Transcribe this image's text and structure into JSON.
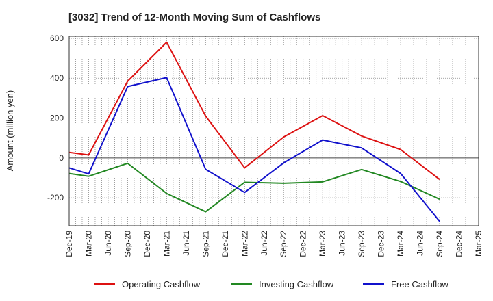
{
  "chart_data": {
    "type": "line",
    "title": "[3032]  Trend of 12-Month Moving Sum of Cashflows",
    "xlabel": "",
    "ylabel": "Amount (million yen)",
    "ylim": [
      -340,
      610
    ],
    "yticks": [
      -200,
      0,
      200,
      400,
      600
    ],
    "categories": [
      "Dec-19",
      "Mar-20",
      "Jun-20",
      "Sep-20",
      "Dec-20",
      "Mar-21",
      "Jun-21",
      "Sep-21",
      "Dec-21",
      "Mar-22",
      "Jun-22",
      "Sep-22",
      "Dec-22",
      "Mar-23",
      "Jun-23",
      "Sep-23",
      "Dec-23",
      "Mar-24",
      "Jun-24",
      "Sep-24",
      "Dec-24",
      "Mar-25"
    ],
    "grid": true,
    "legend_position": "bottom",
    "series": [
      {
        "name": "Operating Cashflow",
        "color": "#dd1111",
        "values": [
          {
            "x": "Dec-19",
            "y": 28
          },
          {
            "x": "Mar-20",
            "y": 15
          },
          {
            "x": "Sep-20",
            "y": 385
          },
          {
            "x": "Mar-21",
            "y": 580
          },
          {
            "x": "Sep-21",
            "y": 210
          },
          {
            "x": "Mar-22",
            "y": -50
          },
          {
            "x": "Sep-22",
            "y": 105
          },
          {
            "x": "Mar-23",
            "y": 212
          },
          {
            "x": "Sep-23",
            "y": 110
          },
          {
            "x": "Mar-24",
            "y": 42
          },
          {
            "x": "Sep-24",
            "y": -108
          }
        ]
      },
      {
        "name": "Investing Cashflow",
        "color": "#228822",
        "values": [
          {
            "x": "Dec-19",
            "y": -78
          },
          {
            "x": "Mar-20",
            "y": -92
          },
          {
            "x": "Sep-20",
            "y": -27
          },
          {
            "x": "Mar-21",
            "y": -178
          },
          {
            "x": "Sep-21",
            "y": -270
          },
          {
            "x": "Mar-22",
            "y": -122
          },
          {
            "x": "Sep-22",
            "y": -127
          },
          {
            "x": "Mar-23",
            "y": -120
          },
          {
            "x": "Sep-23",
            "y": -58
          },
          {
            "x": "Mar-24",
            "y": -118
          },
          {
            "x": "Sep-24",
            "y": -207
          }
        ]
      },
      {
        "name": "Free Cashflow",
        "color": "#1111cc",
        "values": [
          {
            "x": "Dec-19",
            "y": -50
          },
          {
            "x": "Mar-20",
            "y": -80
          },
          {
            "x": "Sep-20",
            "y": 358
          },
          {
            "x": "Mar-21",
            "y": 403
          },
          {
            "x": "Sep-21",
            "y": -57
          },
          {
            "x": "Mar-22",
            "y": -173
          },
          {
            "x": "Sep-22",
            "y": -25
          },
          {
            "x": "Mar-23",
            "y": 90
          },
          {
            "x": "Sep-23",
            "y": 50
          },
          {
            "x": "Mar-24",
            "y": -78
          },
          {
            "x": "Sep-24",
            "y": -318
          }
        ]
      }
    ]
  }
}
